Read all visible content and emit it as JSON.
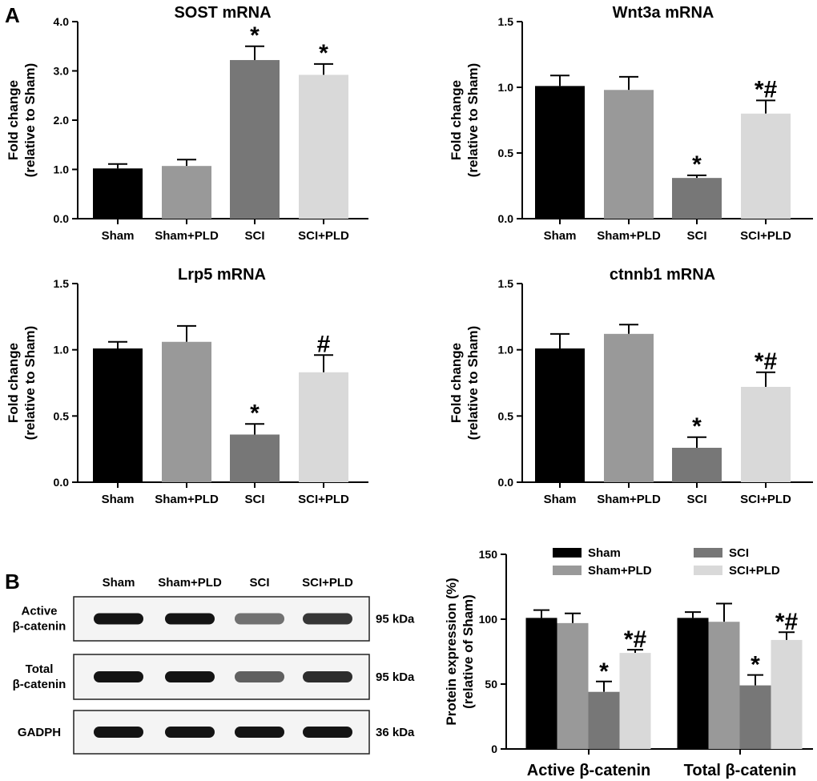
{
  "panels": {
    "a": "A",
    "b": "B"
  },
  "colors": {
    "Sham": "#000000",
    "Sham+PLD": "#999999",
    "SCI": "#777777",
    "SCI+PLD": "#d9d9d9"
  },
  "chart_data": [
    {
      "id": "sost",
      "type": "bar",
      "title": "SOST mRNA",
      "ylabel": [
        "Fold change",
        "(relative to Sham)"
      ],
      "categories": [
        "Sham",
        "Sham+PLD",
        "SCI",
        "SCI+PLD"
      ],
      "values": [
        1.02,
        1.07,
        3.22,
        2.92
      ],
      "errors": [
        0.09,
        0.13,
        0.28,
        0.22
      ],
      "annotations": [
        "",
        "",
        "*",
        "*"
      ],
      "ylim": [
        0,
        4.0
      ],
      "yticks": [
        "0.0",
        "1.0",
        "2.0",
        "3.0",
        "4.0"
      ]
    },
    {
      "id": "wnt3a",
      "type": "bar",
      "title": "Wnt3a mRNA",
      "ylabel": [
        "Fold change",
        "(relative to Sham)"
      ],
      "categories": [
        "Sham",
        "Sham+PLD",
        "SCI",
        "SCI+PLD"
      ],
      "values": [
        1.01,
        0.98,
        0.31,
        0.8
      ],
      "errors": [
        0.08,
        0.1,
        0.02,
        0.1
      ],
      "annotations": [
        "",
        "",
        "*",
        "*#"
      ],
      "ylim": [
        0,
        1.5
      ],
      "yticks": [
        "0.0",
        "0.5",
        "1.0",
        "1.5"
      ]
    },
    {
      "id": "lrp5",
      "type": "bar",
      "title": "Lrp5 mRNA",
      "ylabel": [
        "Fold change",
        "(relative to Sham)"
      ],
      "categories": [
        "Sham",
        "Sham+PLD",
        "SCI",
        "SCI+PLD"
      ],
      "values": [
        1.01,
        1.06,
        0.36,
        0.83
      ],
      "errors": [
        0.05,
        0.12,
        0.08,
        0.13
      ],
      "annotations": [
        "",
        "",
        "*",
        "#"
      ],
      "ylim": [
        0,
        1.5
      ],
      "yticks": [
        "0.0",
        "0.5",
        "1.0",
        "1.5"
      ]
    },
    {
      "id": "ctnnb1",
      "type": "bar",
      "title": "ctnnb1 mRNA",
      "ylabel": [
        "Fold change",
        "(relative to Sham)"
      ],
      "categories": [
        "Sham",
        "Sham+PLD",
        "SCI",
        "SCI+PLD"
      ],
      "values": [
        1.01,
        1.12,
        0.26,
        0.72
      ],
      "errors": [
        0.11,
        0.07,
        0.08,
        0.11
      ],
      "annotations": [
        "",
        "",
        "*",
        "*#"
      ],
      "ylim": [
        0,
        1.5
      ],
      "yticks": [
        "0.0",
        "0.5",
        "1.0",
        "1.5"
      ]
    },
    {
      "id": "protein",
      "type": "bar",
      "title": "",
      "ylabel": [
        "Protein expression (%)",
        "(relative of Sham)"
      ],
      "categories": [
        "Active β-catenin",
        "Total β-catenin"
      ],
      "series": [
        {
          "name": "Sham",
          "values": [
            101,
            101
          ],
          "errors": [
            6,
            4.5
          ]
        },
        {
          "name": "Sham+PLD",
          "values": [
            97,
            98
          ],
          "errors": [
            7.5,
            14
          ]
        },
        {
          "name": "SCI",
          "values": [
            44,
            49
          ],
          "errors": [
            8,
            8
          ]
        },
        {
          "name": "SCI+PLD",
          "values": [
            74,
            84
          ],
          "errors": [
            2.5,
            6
          ]
        }
      ],
      "annotations": [
        [
          "",
          "",
          "*",
          "*#"
        ],
        [
          "",
          "",
          "*",
          "*#"
        ]
      ],
      "legend": [
        "Sham",
        "Sham+PLD",
        "SCI",
        "SCI+PLD"
      ],
      "ylim": [
        0,
        150
      ],
      "yticks": [
        "0",
        "50",
        "100",
        "150"
      ]
    }
  ],
  "blot": {
    "lanes": [
      "Sham",
      "Sham+PLD",
      "SCI",
      "SCI+PLD"
    ],
    "rows": [
      {
        "label": [
          "Active",
          "β-catenin"
        ],
        "kda": "95 kDa",
        "intensity": [
          1.0,
          1.0,
          0.45,
          0.8
        ]
      },
      {
        "label": [
          "Total",
          "β-catenin"
        ],
        "kda": "95 kDa",
        "intensity": [
          1.0,
          1.0,
          0.55,
          0.85
        ]
      },
      {
        "label": [
          "GADPH"
        ],
        "kda": "36 kDa",
        "intensity": [
          1.0,
          1.0,
          1.0,
          1.0
        ]
      }
    ]
  }
}
